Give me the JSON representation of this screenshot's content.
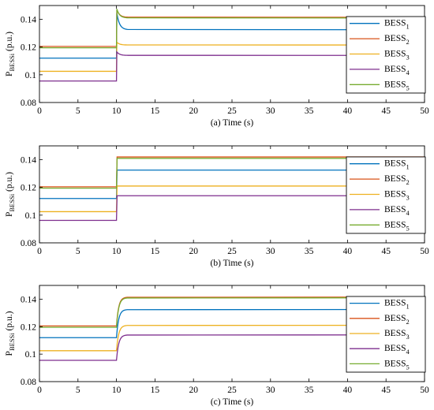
{
  "chart_data": [
    {
      "type": "line",
      "xlabel": "(a) Time (s)",
      "ylabel": "P",
      "ylabel_sub": "BESSi",
      "ylabel_unit": "(p.u.)",
      "xlim": [
        0,
        50
      ],
      "ylim": [
        0.08,
        0.15
      ],
      "xticks": [
        0,
        5,
        10,
        15,
        20,
        25,
        30,
        35,
        40,
        45,
        50
      ],
      "yticks": [
        0.08,
        0.1,
        0.12,
        0.14
      ],
      "ytick_labels": [
        "0.08",
        "0.1",
        "0.12",
        "0.14"
      ],
      "grid": false,
      "legend": "right",
      "step_time": 10,
      "overshoot": "sharp",
      "series": [
        {
          "name": "BESS",
          "sub": "1",
          "color": "#0072BD",
          "before": 0.112,
          "after": 0.1325,
          "peak": 0.1445
        },
        {
          "name": "BESS",
          "sub": "2",
          "color": "#D95319",
          "before": 0.1205,
          "after": 0.1415,
          "peak": 0.147
        },
        {
          "name": "BESS",
          "sub": "3",
          "color": "#EDB120",
          "before": 0.1025,
          "after": 0.1215,
          "peak": 0.1235
        },
        {
          "name": "BESS",
          "sub": "4",
          "color": "#7E2F8E",
          "before": 0.0955,
          "after": 0.114,
          "peak": 0.1165
        },
        {
          "name": "BESS",
          "sub": "5",
          "color": "#77AC30",
          "before": 0.1195,
          "after": 0.141,
          "peak": 0.1475
        }
      ]
    },
    {
      "type": "line",
      "xlabel": "(b) Time (s)",
      "ylabel": "P",
      "ylabel_sub": "BESSi",
      "ylabel_unit": "(p.u.)",
      "xlim": [
        0,
        50
      ],
      "ylim": [
        0.08,
        0.15
      ],
      "xticks": [
        0,
        5,
        10,
        15,
        20,
        25,
        30,
        35,
        40,
        45,
        50
      ],
      "yticks": [
        0.08,
        0.1,
        0.12,
        0.14
      ],
      "ytick_labels": [
        "0.08",
        "0.1",
        "0.12",
        "0.14"
      ],
      "grid": false,
      "legend": "right",
      "step_time": 10,
      "overshoot": "none",
      "series": [
        {
          "name": "BESS",
          "sub": "1",
          "color": "#0072BD",
          "before": 0.112,
          "after": 0.1325
        },
        {
          "name": "BESS",
          "sub": "2",
          "color": "#D95319",
          "before": 0.1205,
          "after": 0.142
        },
        {
          "name": "BESS",
          "sub": "3",
          "color": "#EDB120",
          "before": 0.1025,
          "after": 0.121
        },
        {
          "name": "BESS",
          "sub": "4",
          "color": "#7E2F8E",
          "before": 0.0962,
          "after": 0.114
        },
        {
          "name": "BESS",
          "sub": "5",
          "color": "#77AC30",
          "before": 0.1195,
          "after": 0.141
        }
      ]
    },
    {
      "type": "line",
      "xlabel": "(c) Time (s)",
      "ylabel": "P",
      "ylabel_sub": "BESSi",
      "ylabel_unit": "(p.u.)",
      "xlim": [
        0,
        50
      ],
      "ylim": [
        0.08,
        0.15
      ],
      "xticks": [
        0,
        5,
        10,
        15,
        20,
        25,
        30,
        35,
        40,
        45,
        50
      ],
      "yticks": [
        0.08,
        0.1,
        0.12,
        0.14
      ],
      "ytick_labels": [
        "0.08",
        "0.1",
        "0.12",
        "0.14"
      ],
      "grid": false,
      "legend": "right",
      "step_time": 10,
      "overshoot": "smooth",
      "series": [
        {
          "name": "BESS",
          "sub": "1",
          "color": "#0072BD",
          "before": 0.112,
          "after": 0.1325
        },
        {
          "name": "BESS",
          "sub": "2",
          "color": "#D95319",
          "before": 0.1205,
          "after": 0.1415
        },
        {
          "name": "BESS",
          "sub": "3",
          "color": "#EDB120",
          "before": 0.1025,
          "after": 0.121
        },
        {
          "name": "BESS",
          "sub": "4",
          "color": "#7E2F8E",
          "before": 0.0955,
          "after": 0.114
        },
        {
          "name": "BESS",
          "sub": "5",
          "color": "#77AC30",
          "before": 0.1195,
          "after": 0.141
        }
      ]
    }
  ]
}
